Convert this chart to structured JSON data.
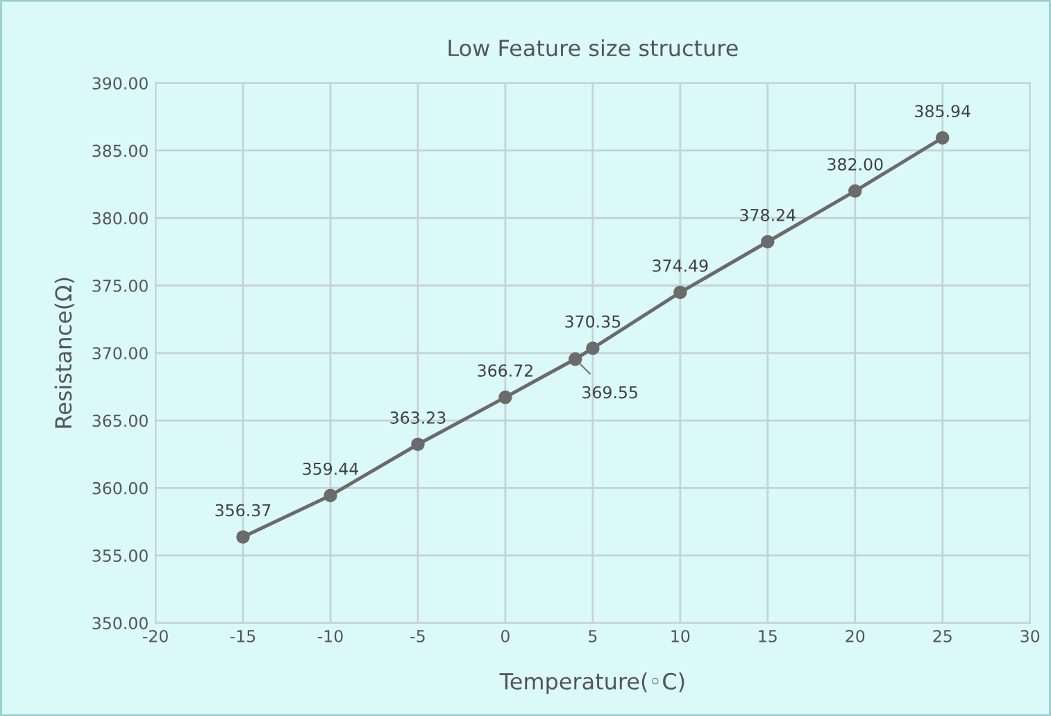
{
  "chart_data": {
    "type": "line",
    "title": "Low Feature size structure",
    "xlabel": "Temperature(◦C)",
    "ylabel": "Resistance(Ω)",
    "x": [
      -15,
      -10,
      -5,
      0,
      4,
      5,
      10,
      15,
      20,
      25
    ],
    "series": [
      {
        "color": "#6b6b6b",
        "values": [
          356.37,
          359.44,
          363.23,
          366.72,
          369.55,
          370.35,
          374.49,
          378.24,
          382.0,
          385.94
        ],
        "value_labels": [
          "356.37",
          "359.44",
          "363.23",
          "366.72",
          "369.55",
          "370.35",
          "374.49",
          "378.24",
          "382.00",
          "385.94"
        ]
      }
    ],
    "xlim": [
      -20,
      30
    ],
    "xticks": [
      -20,
      -15,
      -10,
      -5,
      0,
      5,
      10,
      15,
      20,
      25,
      30
    ],
    "ylim": [
      350,
      390
    ],
    "yticks": [
      {
        "value": 350,
        "label": "350.00"
      },
      {
        "value": 355,
        "label": "355.00"
      },
      {
        "value": 360,
        "label": "360.00"
      },
      {
        "value": 365,
        "label": "365.00"
      },
      {
        "value": 370,
        "label": "370.00"
      },
      {
        "value": 375,
        "label": "375.00"
      },
      {
        "value": 380,
        "label": "380.00"
      },
      {
        "value": 385,
        "label": "385.00"
      },
      {
        "value": 390,
        "label": "390.00"
      }
    ],
    "grid": true,
    "marker": "circle",
    "line_style": "solid",
    "legend": false
  }
}
